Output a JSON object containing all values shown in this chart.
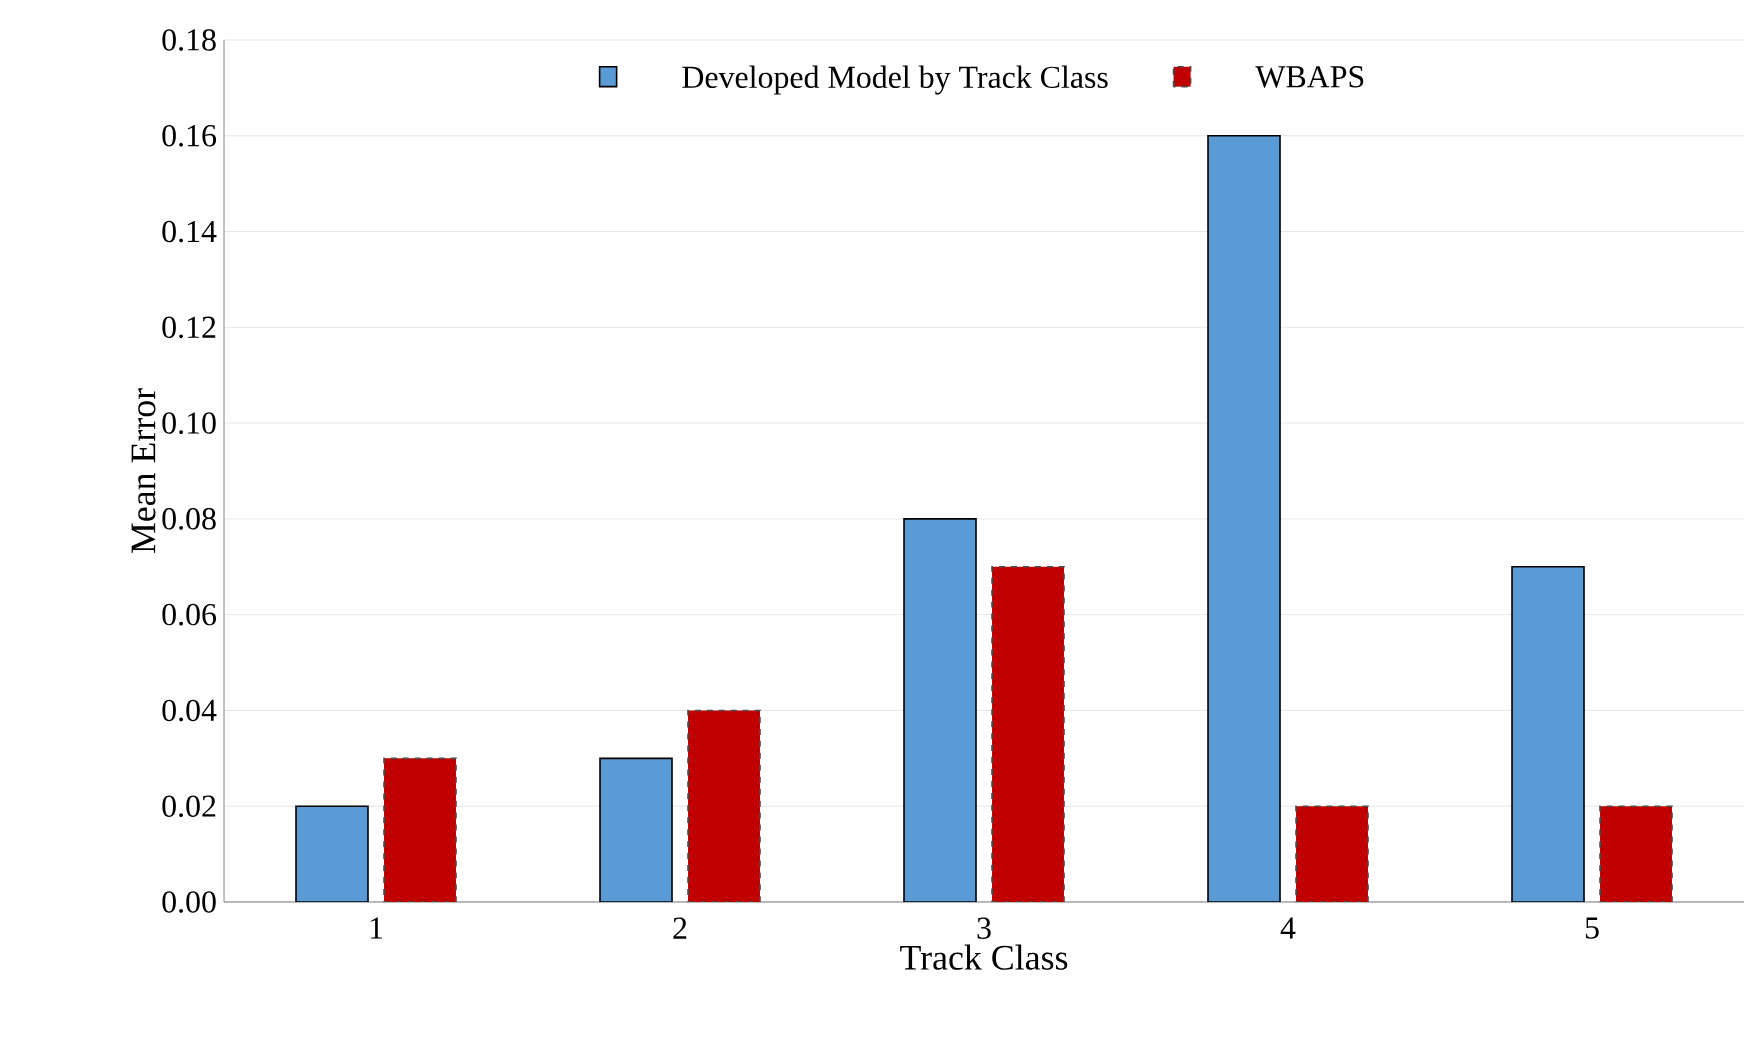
{
  "chart_data": {
    "type": "bar",
    "xlabel": "Track Class",
    "ylabel": "Mean  Error",
    "categories": [
      "1",
      "2",
      "3",
      "4",
      "5"
    ],
    "series": [
      {
        "name": "Developed Model by Track Class",
        "color": "#5b9bd5",
        "values": [
          0.02,
          0.03,
          0.08,
          0.16,
          0.07
        ]
      },
      {
        "name": "WBAPS",
        "color": "#c00000",
        "line_style": "dashed",
        "values": [
          0.03,
          0.04,
          0.07,
          0.02,
          0.02
        ]
      }
    ],
    "ylim": [
      0,
      0.18
    ],
    "yticks": [
      {
        "value": 0,
        "label": "0.00"
      },
      {
        "value": 0.02,
        "label": "0.02"
      },
      {
        "value": 0.04,
        "label": "0.04"
      },
      {
        "value": 0.06,
        "label": "0.06"
      },
      {
        "value": 0.08,
        "label": "0.08"
      },
      {
        "value": 0.1,
        "label": "0.10"
      },
      {
        "value": 0.12,
        "label": "0.12"
      },
      {
        "value": 0.14,
        "label": "0.14"
      },
      {
        "value": 0.16,
        "label": "0.16"
      },
      {
        "value": 0.18,
        "label": "0.18"
      }
    ],
    "grid": "y",
    "legend": "top"
  }
}
